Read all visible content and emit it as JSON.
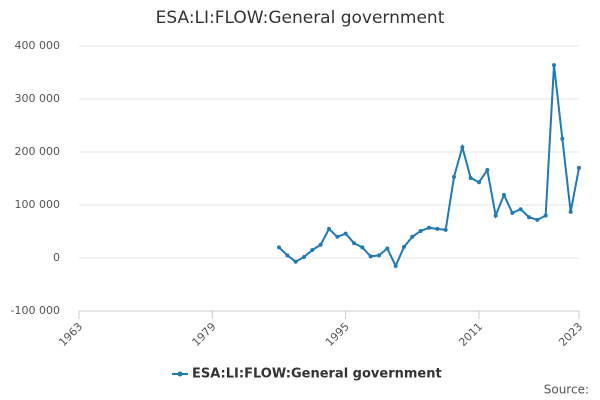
{
  "chart_data": {
    "type": "line",
    "title": "ESA:LI:FLOW:General government",
    "x": [
      1987,
      1988,
      1989,
      1990,
      1991,
      1992,
      1993,
      1994,
      1995,
      1996,
      1997,
      1998,
      1999,
      2000,
      2001,
      2002,
      2003,
      2004,
      2005,
      2006,
      2007,
      2008,
      2009,
      2010,
      2011,
      2012,
      2013,
      2014,
      2015,
      2016,
      2017,
      2018,
      2019,
      2020,
      2021,
      2022,
      2023
    ],
    "series": [
      {
        "name": "ESA:LI:FLOW:General government",
        "color": "#1f7ab5",
        "values": [
          20000,
          5000,
          -7000,
          2000,
          15000,
          25000,
          55000,
          40000,
          46000,
          28000,
          20000,
          3000,
          5000,
          18000,
          -15000,
          21000,
          40000,
          51000,
          57000,
          55000,
          53000,
          153000,
          209000,
          151000,
          143000,
          166000,
          80000,
          119000,
          85000,
          92000,
          77000,
          72000,
          80000,
          364000,
          225000,
          87000,
          170000
        ]
      }
    ],
    "xlim": [
      1963,
      2023
    ],
    "xticks": [
      1963,
      1979,
      1995,
      2011,
      2023
    ],
    "ylim": [
      -100000,
      400000
    ],
    "yticks": [
      {
        "value": -100000,
        "label": "-100 000"
      },
      0,
      {
        "value": 100000,
        "label": "100 000"
      },
      {
        "value": 200000,
        "label": "200 000"
      },
      {
        "value": 300000,
        "label": "300 000"
      },
      {
        "value": 400000,
        "label": "400 000"
      }
    ],
    "grid": true,
    "legend": "bottom",
    "source": "Source:"
  }
}
